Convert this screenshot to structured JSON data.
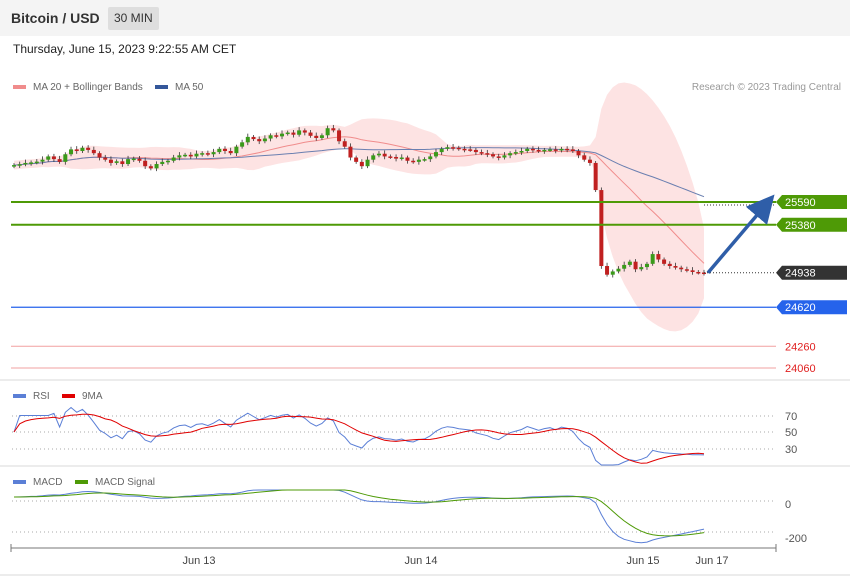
{
  "header": {
    "title": "Bitcoin / USD",
    "timeframe": "30 MIN",
    "datetime": "Thursday, June 15, 2023 9:22:55 AM CET"
  },
  "main_chart": {
    "legend": [
      {
        "label": "MA 20 + Bollinger Bands",
        "color": "#f08c8c"
      },
      {
        "label": "MA 50",
        "color": "#34579a"
      }
    ],
    "credit": "Research © 2023 Trading Central",
    "levels": [
      {
        "value": 25590,
        "label": "25590",
        "color": "#4e9a06",
        "style": "box"
      },
      {
        "value": 25380,
        "label": "25380",
        "color": "#4e9a06",
        "style": "box"
      },
      {
        "value": 24938,
        "label": "24938",
        "color": "#333333",
        "style": "box-current"
      },
      {
        "value": 24620,
        "label": "24620",
        "color": "#2563eb",
        "style": "box"
      },
      {
        "value": 24260,
        "label": "24260",
        "color": "#e02020",
        "style": "text"
      },
      {
        "value": 24060,
        "label": "24060",
        "color": "#e02020",
        "style": "text"
      }
    ]
  },
  "rsi_panel": {
    "legend": [
      {
        "label": "RSI",
        "color": "#5b7fd6"
      },
      {
        "label": "9MA",
        "color": "#e00000"
      }
    ],
    "ticks": [
      "70",
      "50",
      "30"
    ]
  },
  "macd_panel": {
    "legend": [
      {
        "label": "MACD",
        "color": "#5b7fd6"
      },
      {
        "label": "MACD Signal",
        "color": "#4e9a06"
      }
    ],
    "ticks": [
      "0",
      "-200"
    ]
  },
  "x_axis": {
    "ticks": [
      "Jun 13",
      "Jun 14",
      "Jun 15",
      "Jun 17"
    ]
  },
  "chart_data": {
    "type": "candlestick",
    "title": "Bitcoin / USD",
    "timeframe": "30 MIN",
    "y_range": [
      24000,
      26600
    ],
    "close_series": [
      25930,
      25938,
      25950,
      25955,
      25962,
      25980,
      26010,
      25985,
      25960,
      26030,
      26075,
      26060,
      26090,
      26070,
      26040,
      26000,
      25980,
      25950,
      25965,
      25940,
      25985,
      25990,
      25970,
      25920,
      25900,
      25940,
      25960,
      25970,
      26000,
      26020,
      26025,
      26010,
      26035,
      26040,
      26030,
      26050,
      26080,
      26060,
      26040,
      26100,
      26140,
      26190,
      26170,
      26150,
      26175,
      26205,
      26195,
      26220,
      26230,
      26210,
      26250,
      26230,
      26200,
      26180,
      26205,
      26270,
      26250,
      26150,
      26100,
      26000,
      25960,
      25920,
      25980,
      26020,
      26035,
      26010,
      26005,
      25990,
      26000,
      25970,
      25960,
      25980,
      25985,
      26010,
      26050,
      26080,
      26095,
      26090,
      26080,
      26075,
      26070,
      26050,
      26040,
      26030,
      26010,
      26000,
      26020,
      26040,
      26050,
      26060,
      26080,
      26070,
      26060,
      26070,
      26075,
      26065,
      26080,
      26075,
      26060,
      26020,
      25980,
      25950,
      25700,
      25000,
      24920,
      24950,
      24975,
      25010,
      25040,
      24970,
      24990,
      25020,
      25110,
      25060,
      25020,
      25000,
      24985,
      24970,
      24960,
      24945,
      24940,
      24938
    ],
    "annotation": {
      "type": "arrow",
      "from": 24938,
      "to": 25610
    },
    "rsi": {
      "levels": [
        70,
        50,
        30
      ]
    },
    "macd": {
      "levels": [
        0,
        -200
      ]
    }
  }
}
